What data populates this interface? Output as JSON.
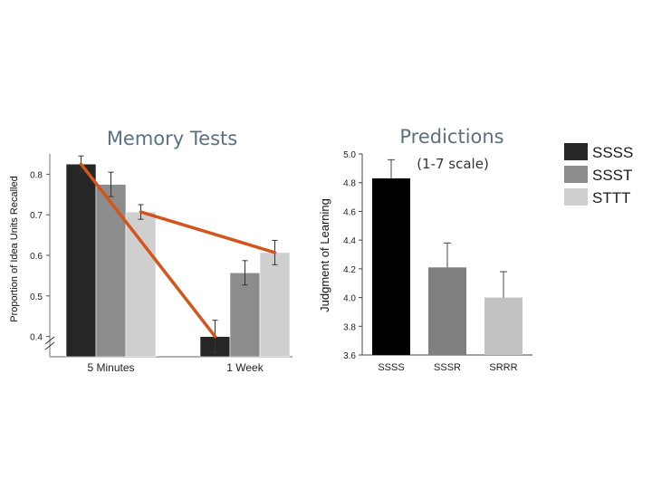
{
  "legend": {
    "items": [
      {
        "label": "SSSS",
        "color": "#262626"
      },
      {
        "label": "SSST",
        "color": "#8c8c8c"
      },
      {
        "label": "STTT",
        "color": "#cfcfcf"
      }
    ]
  },
  "chart_data": [
    {
      "type": "bar",
      "title": "Memory Tests",
      "xlabel": "",
      "ylabel": "Proportion of Idea Units Recalled",
      "ylim": [
        0.35,
        0.85
      ],
      "yticks": [
        "0.4",
        "0.5",
        "0.6",
        "0.7",
        "0.8"
      ],
      "categories": [
        "5 Minutes",
        "1 Week"
      ],
      "series": [
        {
          "name": "SSSS",
          "values": [
            0.825,
            0.4
          ],
          "errors": [
            0.02,
            0.04
          ],
          "color": "#262626"
        },
        {
          "name": "SSST",
          "values": [
            0.775,
            0.557
          ],
          "errors": [
            0.03,
            0.03
          ],
          "color": "#8c8c8c"
        },
        {
          "name": "STTT",
          "values": [
            0.707,
            0.607
          ],
          "errors": [
            0.018,
            0.03
          ],
          "color": "#cfcfcf"
        }
      ],
      "trend_lines": [
        {
          "from": {
            "category": "5 Minutes",
            "series": "SSSS"
          },
          "to": {
            "category": "1 Week",
            "series": "SSSS"
          },
          "color": "#d3541c"
        },
        {
          "from": {
            "category": "5 Minutes",
            "series": "STTT"
          },
          "to": {
            "category": "1 Week",
            "series": "STTT"
          },
          "color": "#d3541c"
        }
      ],
      "grid": false
    },
    {
      "type": "bar",
      "title": "Predictions",
      "subtitle": "(1-7 scale)",
      "xlabel": "",
      "ylabel": "Judgment of Learning",
      "ylim": [
        3.6,
        5.0
      ],
      "yticks": [
        "3.6",
        "3.8",
        "4.0",
        "4.2",
        "4.4",
        "4.6",
        "4.8",
        "5.0"
      ],
      "categories": [
        "SSSS",
        "SSSR",
        "SRRR"
      ],
      "values": [
        4.83,
        4.21,
        4.0
      ],
      "errors": [
        0.13,
        0.17,
        0.18
      ],
      "colors": [
        "#000000",
        "#808080",
        "#c2c2c2"
      ],
      "grid": false
    }
  ]
}
